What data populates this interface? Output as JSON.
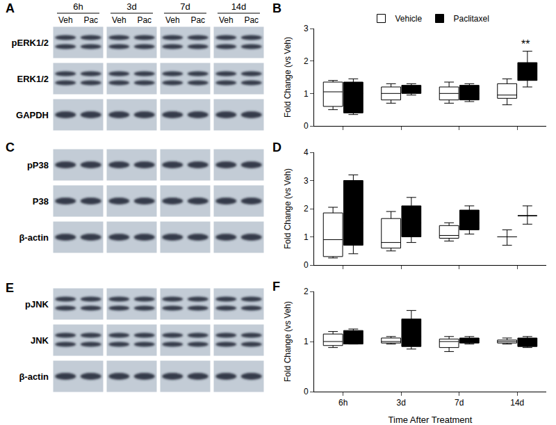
{
  "blots": [
    {
      "panel": "A",
      "time_points": [
        "6h",
        "3d",
        "7d",
        "14d"
      ],
      "lanes": [
        "Veh",
        "Pac"
      ],
      "rows": [
        "pERK1/2",
        "ERK1/2",
        "GAPDH"
      ]
    },
    {
      "panel": "C",
      "rows": [
        "pP38",
        "P38",
        "β-actin"
      ]
    },
    {
      "panel": "E",
      "rows": [
        "pJNK",
        "JNK",
        "β-actin"
      ]
    }
  ],
  "chart_data": [
    {
      "type": "box",
      "panel": "B",
      "categories": [
        "6h",
        "3d",
        "7d",
        "14d"
      ],
      "ylabel": "Fold Change (vs Veh)",
      "ylim": [
        0,
        3
      ],
      "yticks": [
        0,
        1,
        2,
        3
      ],
      "grid": false,
      "legend": "top",
      "tick_labels": "y",
      "series": [
        {
          "name": "Vehicle",
          "color": "#ffffff",
          "lower": [
            0.5,
            0.7,
            0.7,
            0.65
          ],
          "q1": [
            0.6,
            0.8,
            0.8,
            0.85
          ],
          "median": [
            1.05,
            1.0,
            1.0,
            0.95
          ],
          "q3": [
            1.35,
            1.2,
            1.2,
            1.3
          ],
          "upper": [
            1.4,
            1.3,
            1.35,
            1.45
          ]
        },
        {
          "name": "Paclitaxel",
          "color": "#000000",
          "lower": [
            0.35,
            0.95,
            0.75,
            1.2
          ],
          "q1": [
            0.4,
            1.0,
            0.8,
            1.4
          ],
          "median": [
            1.0,
            1.1,
            1.0,
            1.7
          ],
          "q3": [
            1.35,
            1.25,
            1.25,
            1.95
          ],
          "upper": [
            1.45,
            1.3,
            1.3,
            2.3
          ],
          "significance": [
            null,
            null,
            null,
            "**"
          ]
        }
      ]
    },
    {
      "type": "box",
      "panel": "D",
      "categories": [
        "6h",
        "3d",
        "7d",
        "14d"
      ],
      "ylabel": "Fold Change (vs Veh)",
      "ylim": [
        0,
        4
      ],
      "yticks": [
        0,
        1,
        2,
        3,
        4
      ],
      "grid": false,
      "tick_labels": "y",
      "series": [
        {
          "name": "Vehicle",
          "color": "#ffffff",
          "lower": [
            0.25,
            0.5,
            0.85,
            0.7
          ],
          "q1": [
            0.3,
            0.6,
            0.95,
            1.0
          ],
          "median": [
            0.9,
            0.8,
            1.05,
            1.0
          ],
          "q3": [
            1.85,
            1.65,
            1.4,
            1.0
          ],
          "upper": [
            2.05,
            1.9,
            1.5,
            1.25
          ]
        },
        {
          "name": "Paclitaxel",
          "color": "#000000",
          "lower": [
            0.4,
            0.8,
            1.1,
            1.45
          ],
          "q1": [
            0.7,
            1.0,
            1.25,
            1.75
          ],
          "median": [
            1.5,
            1.5,
            1.5,
            1.75
          ],
          "q3": [
            3.0,
            2.1,
            1.95,
            1.75
          ],
          "upper": [
            3.2,
            2.4,
            2.1,
            2.1
          ]
        }
      ]
    },
    {
      "type": "box",
      "panel": "F",
      "categories": [
        "6h",
        "3d",
        "7d",
        "14d"
      ],
      "ylabel": "Fold Change (vs Veh)",
      "xlabel": "Time After Treatment",
      "ylim": [
        0,
        2
      ],
      "yticks": [
        0,
        1,
        2
      ],
      "grid": false,
      "series": [
        {
          "name": "Vehicle",
          "color": "#ffffff",
          "lower": [
            0.88,
            0.95,
            0.8,
            0.95
          ],
          "q1": [
            0.92,
            0.97,
            0.88,
            0.97
          ],
          "median": [
            1.0,
            1.0,
            1.0,
            1.0
          ],
          "q3": [
            1.15,
            1.07,
            1.05,
            1.03
          ],
          "upper": [
            1.2,
            1.1,
            1.1,
            1.07
          ]
        },
        {
          "name": "Paclitaxel",
          "color": "#000000",
          "lower": [
            0.95,
            0.85,
            0.95,
            0.88
          ],
          "q1": [
            0.95,
            0.9,
            0.97,
            0.9
          ],
          "median": [
            1.1,
            1.1,
            1.02,
            1.0
          ],
          "q3": [
            1.22,
            1.45,
            1.07,
            1.07
          ],
          "upper": [
            1.25,
            1.62,
            1.1,
            1.1
          ]
        }
      ]
    }
  ]
}
